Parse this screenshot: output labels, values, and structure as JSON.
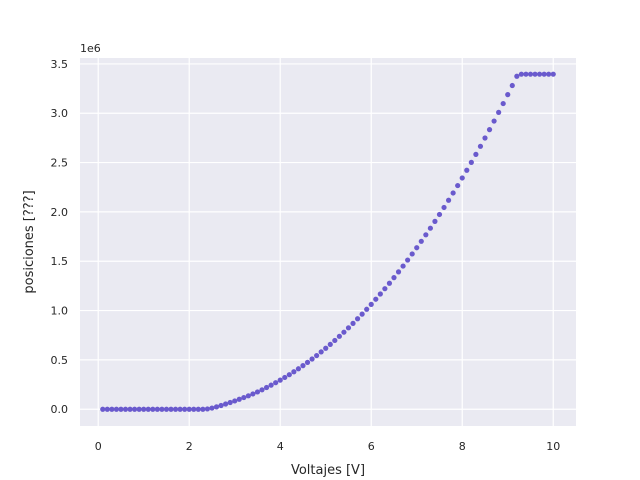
{
  "chart_data": {
    "type": "scatter",
    "title": "",
    "xlabel": "Voltajes [V]",
    "ylabel": "posiciones [???]",
    "offset_label": "1e6",
    "xlim": [
      -0.4,
      10.5
    ],
    "ylim": [
      -170000,
      3560000
    ],
    "xticks": [
      0,
      2,
      4,
      6,
      8,
      10
    ],
    "yticks": [
      0,
      500000,
      1000000,
      1500000,
      2000000,
      2500000,
      3000000,
      3500000
    ],
    "xtick_labels": [
      "0",
      "2",
      "4",
      "6",
      "8",
      "10"
    ],
    "ytick_labels": [
      "0.0",
      "0.5",
      "1.0",
      "1.5",
      "2.0",
      "2.5",
      "3.0",
      "3.5"
    ],
    "grid": true,
    "colors": {
      "point": "#6a5acd",
      "background": "#eaeaf2",
      "grid": "#ffffff"
    },
    "points": {
      "x": [
        0.1,
        0.2,
        0.3,
        0.4,
        0.5,
        0.6,
        0.7,
        0.8,
        0.9,
        1.0,
        1.1,
        1.2,
        1.3,
        1.4,
        1.5,
        1.6,
        1.7,
        1.8,
        1.9,
        2.0,
        2.1,
        2.2,
        2.3,
        2.4,
        2.5,
        2.6,
        2.7,
        2.8,
        2.9,
        3.0,
        3.1,
        3.2,
        3.3,
        3.4,
        3.5,
        3.6,
        3.7,
        3.8,
        3.9,
        4.0,
        4.1,
        4.2,
        4.3,
        4.4,
        4.5,
        4.6,
        4.7,
        4.8,
        4.9,
        5.0,
        5.1,
        5.2,
        5.3,
        5.4,
        5.5,
        5.6,
        5.7,
        5.8,
        5.9,
        6.0,
        6.1,
        6.2,
        6.3,
        6.4,
        6.5,
        6.6,
        6.7,
        6.8,
        6.9,
        7.0,
        7.1,
        7.2,
        7.3,
        7.4,
        7.5,
        7.6,
        7.7,
        7.8,
        7.9,
        8.0,
        8.1,
        8.2,
        8.3,
        8.4,
        8.5,
        8.6,
        8.7,
        8.8,
        8.9,
        9.0,
        9.1,
        9.2,
        9.3,
        9.4,
        9.5,
        9.6,
        9.7,
        9.8,
        9.9,
        10.0
      ],
      "y": [
        0,
        0,
        0,
        0,
        0,
        0,
        0,
        0,
        0,
        0,
        0,
        0,
        0,
        0,
        0,
        0,
        0,
        0,
        0,
        0,
        0,
        0,
        0,
        3000,
        12000,
        24000,
        38000,
        53000,
        68000,
        84000,
        101000,
        118000,
        136000,
        155000,
        175000,
        197000,
        220000,
        244000,
        269000,
        295000,
        322000,
        350000,
        380000,
        410000,
        442000,
        475000,
        509000,
        544000,
        581000,
        618000,
        657000,
        697000,
        739000,
        781000,
        825000,
        870000,
        917000,
        964000,
        1013000,
        1063000,
        1115000,
        1168000,
        1222000,
        1277000,
        1334000,
        1392000,
        1451000,
        1512000,
        1574000,
        1637000,
        1702000,
        1768000,
        1835000,
        1904000,
        1974000,
        2045000,
        2118000,
        2192000,
        2267000,
        2344000,
        2422000,
        2502000,
        2583000,
        2665000,
        2749000,
        2834000,
        2921000,
        3009000,
        3098000,
        3189000,
        3281000,
        3375000,
        3396000,
        3396000,
        3396000,
        3396000,
        3396000,
        3396000,
        3396000,
        3396000
      ]
    }
  }
}
